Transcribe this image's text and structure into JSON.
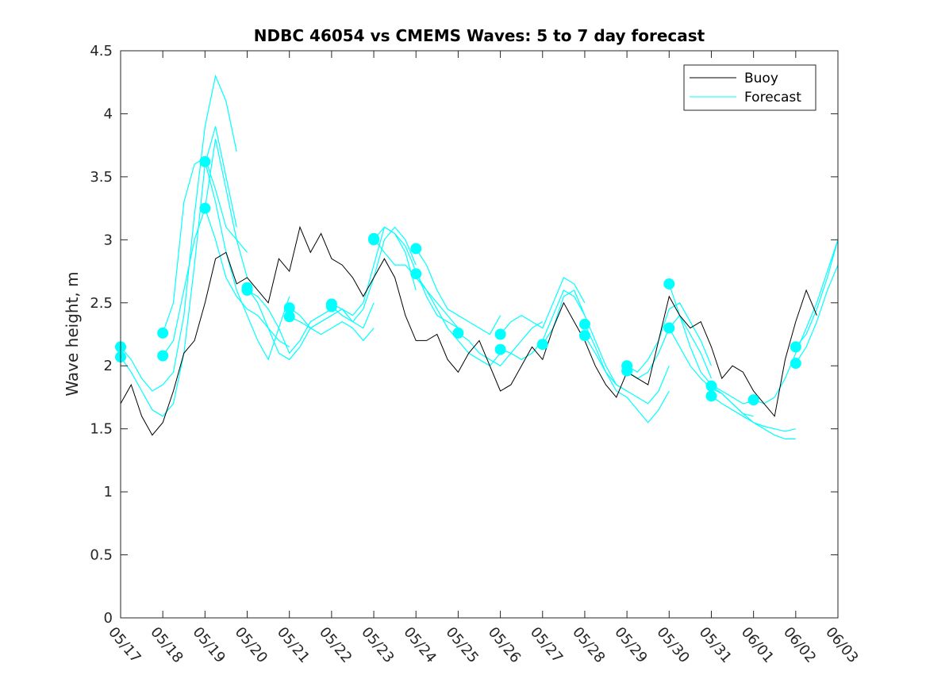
{
  "chart_data": {
    "type": "line",
    "title": "NDBC 46054 vs CMEMS Waves: 5 to 7 day forecast",
    "xlabel": "",
    "ylabel": "Wave height, m",
    "xlim": [
      "05/17",
      "06/03"
    ],
    "ylim": [
      0,
      4.5
    ],
    "x_ticks": [
      "05/17",
      "05/18",
      "05/19",
      "05/20",
      "05/21",
      "05/22",
      "05/23",
      "05/24",
      "05/25",
      "05/26",
      "05/27",
      "05/28",
      "05/29",
      "05/30",
      "05/31",
      "06/01",
      "06/02",
      "06/03"
    ],
    "y_ticks": [
      "0",
      "0.5",
      "1",
      "1.5",
      "2",
      "2.5",
      "3",
      "3.5",
      "4",
      "4.5"
    ],
    "grid": false,
    "legend": {
      "placement": "top-right",
      "entries": [
        "Buoy",
        "Forecast"
      ]
    },
    "colors": {
      "buoy": "#000000",
      "forecast": "#00FFFF"
    },
    "series": [
      {
        "name": "Buoy",
        "x_day_of_may": [
          17.0,
          17.25,
          17.5,
          17.75,
          18.0,
          18.25,
          18.5,
          18.75,
          19.0,
          19.25,
          19.5,
          19.75,
          20.0,
          20.25,
          20.5,
          20.75,
          21.0,
          21.25,
          21.5,
          21.75,
          22.0,
          22.25,
          22.5,
          22.75,
          23.0,
          23.25,
          23.5,
          23.75,
          24.0,
          24.25,
          24.5,
          24.75,
          25.0,
          25.25,
          25.5,
          25.75,
          26.0,
          26.25,
          26.5,
          26.75,
          27.0,
          27.25,
          27.5,
          27.75,
          28.0,
          28.25,
          28.5,
          28.75,
          29.0,
          29.25,
          29.5,
          29.75,
          30.0,
          30.25,
          30.5,
          30.75,
          31.0,
          31.25,
          31.5,
          31.75,
          32.0,
          32.25,
          32.5,
          32.75,
          33.0,
          33.25,
          33.5
        ],
        "values": [
          1.7,
          1.85,
          1.6,
          1.45,
          1.55,
          1.8,
          2.1,
          2.2,
          2.5,
          2.85,
          2.9,
          2.65,
          2.7,
          2.6,
          2.5,
          2.85,
          2.75,
          3.1,
          2.9,
          3.05,
          2.85,
          2.8,
          2.7,
          2.55,
          2.7,
          2.85,
          2.7,
          2.4,
          2.2,
          2.2,
          2.25,
          2.05,
          1.95,
          2.1,
          2.2,
          2.0,
          1.8,
          1.85,
          2.0,
          2.15,
          2.05,
          2.3,
          2.5,
          2.35,
          2.2,
          2.0,
          1.85,
          1.75,
          1.95,
          1.9,
          1.85,
          2.2,
          2.55,
          2.4,
          2.3,
          2.35,
          2.15,
          1.9,
          2.0,
          1.95,
          1.8,
          1.7,
          1.6,
          2.05,
          2.35,
          2.6,
          2.4
        ]
      }
    ],
    "forecast_runs": [
      {
        "x_day_of_may": [
          17.0,
          17.25,
          17.5,
          17.75,
          18.0,
          18.25,
          18.5,
          18.75,
          19.0,
          19.25,
          19.5,
          19.75
        ],
        "values": [
          2.15,
          2.05,
          1.9,
          1.8,
          1.85,
          1.95,
          2.4,
          3.2,
          3.9,
          4.3,
          4.1,
          3.7
        ]
      },
      {
        "x_day_of_may": [
          17.0,
          17.25,
          17.5,
          17.75,
          18.0,
          18.25,
          18.5,
          18.75,
          19.0,
          19.25,
          19.5,
          19.75
        ],
        "values": [
          2.07,
          1.95,
          1.8,
          1.65,
          1.6,
          1.7,
          2.1,
          2.8,
          3.6,
          3.9,
          3.5,
          3.1
        ]
      },
      {
        "x_day_of_may": [
          18.0,
          18.25,
          18.5,
          18.75,
          19.0,
          19.25,
          19.5,
          19.75,
          20.0
        ],
        "values": [
          2.26,
          2.5,
          3.3,
          3.6,
          3.65,
          3.4,
          3.1,
          3.0,
          2.9
        ]
      },
      {
        "x_day_of_may": [
          18.0,
          18.25,
          18.5,
          18.75,
          19.0,
          19.25,
          19.5,
          19.75,
          20.0
        ],
        "values": [
          2.08,
          2.2,
          2.6,
          3.0,
          3.25,
          3.8,
          3.4,
          3.0,
          2.7
        ]
      },
      {
        "x_day_of_may": [
          19.0,
          19.25,
          19.5,
          19.75,
          20.0,
          20.25,
          20.5,
          20.75,
          21.0
        ],
        "values": [
          3.62,
          3.3,
          2.9,
          2.6,
          2.4,
          2.2,
          2.05,
          2.3,
          2.55
        ]
      },
      {
        "x_day_of_may": [
          19.0,
          19.25,
          19.5,
          19.75,
          20.0,
          20.25,
          20.5,
          20.75,
          21.0
        ],
        "values": [
          3.25,
          3.0,
          2.7,
          2.55,
          2.45,
          2.4,
          2.3,
          2.2,
          2.15
        ]
      },
      {
        "x_day_of_may": [
          20.0,
          20.25,
          20.5,
          20.75,
          21.0,
          21.25,
          21.5,
          21.75,
          22.0
        ],
        "values": [
          2.62,
          2.5,
          2.3,
          2.1,
          2.05,
          2.15,
          2.3,
          2.35,
          2.4
        ]
      },
      {
        "x_day_of_may": [
          20.0,
          20.25,
          20.5,
          20.75,
          21.0,
          21.25,
          21.5,
          21.75,
          22.0
        ],
        "values": [
          2.6,
          2.55,
          2.45,
          2.3,
          2.1,
          2.2,
          2.35,
          2.4,
          2.45
        ]
      },
      {
        "x_day_of_may": [
          21.0,
          21.25,
          21.5,
          21.75,
          22.0,
          22.25,
          22.5,
          22.75,
          23.0
        ],
        "values": [
          2.46,
          2.4,
          2.3,
          2.25,
          2.3,
          2.35,
          2.3,
          2.2,
          2.3
        ]
      },
      {
        "x_day_of_may": [
          21.0,
          21.25,
          21.5,
          21.75,
          22.0,
          22.25,
          22.5,
          22.75,
          23.0
        ],
        "values": [
          2.39,
          2.35,
          2.3,
          2.35,
          2.4,
          2.45,
          2.35,
          2.3,
          2.5
        ]
      },
      {
        "x_day_of_may": [
          22.0,
          22.25,
          22.5,
          22.75,
          23.0,
          23.25,
          23.5,
          23.75,
          24.0
        ],
        "values": [
          2.49,
          2.45,
          2.4,
          2.5,
          2.8,
          3.1,
          3.05,
          2.9,
          2.6
        ]
      },
      {
        "x_day_of_may": [
          22.0,
          22.25,
          22.5,
          22.75,
          23.0,
          23.25,
          23.5,
          23.75,
          24.0
        ],
        "values": [
          2.47,
          2.4,
          2.35,
          2.45,
          2.7,
          3.0,
          3.1,
          3.0,
          2.8
        ]
      },
      {
        "x_day_of_may": [
          23.0,
          23.25,
          23.5,
          23.75,
          24.0,
          24.25,
          24.5,
          24.75,
          25.0
        ],
        "values": [
          3.01,
          2.9,
          2.8,
          2.8,
          2.7,
          2.6,
          2.5,
          2.4,
          2.3
        ]
      },
      {
        "x_day_of_may": [
          23.0,
          23.25,
          23.5,
          23.75,
          24.0,
          24.25,
          24.5,
          24.75,
          25.0
        ],
        "values": [
          3.0,
          3.1,
          3.05,
          2.95,
          2.75,
          2.55,
          2.4,
          2.35,
          2.3
        ]
      },
      {
        "x_day_of_may": [
          24.0,
          24.25,
          24.5,
          24.75,
          25.0,
          25.25,
          25.5,
          25.75,
          26.0
        ],
        "values": [
          2.93,
          2.8,
          2.6,
          2.45,
          2.4,
          2.35,
          2.3,
          2.25,
          2.4
        ]
      },
      {
        "x_day_of_may": [
          24.0,
          24.25,
          24.5,
          24.75,
          25.0,
          25.25,
          25.5,
          25.75,
          26.0
        ],
        "values": [
          2.73,
          2.6,
          2.45,
          2.3,
          2.2,
          2.1,
          2.05,
          2.0,
          2.1
        ]
      },
      {
        "x_day_of_may": [
          25.0,
          25.25,
          25.5,
          25.75,
          26.0,
          26.25,
          26.5,
          26.75,
          27.0
        ],
        "values": [
          2.26,
          2.2,
          2.1,
          2.05,
          2.0,
          2.1,
          2.2,
          2.3,
          2.35
        ]
      },
      {
        "x_day_of_may": [
          26.0,
          26.25,
          26.5,
          26.75,
          27.0,
          27.25,
          27.5,
          27.75,
          28.0
        ],
        "values": [
          2.25,
          2.35,
          2.4,
          2.35,
          2.3,
          2.5,
          2.7,
          2.65,
          2.5
        ]
      },
      {
        "x_day_of_may": [
          26.0,
          26.25,
          26.5,
          26.75,
          27.0,
          27.25,
          27.5,
          27.75,
          28.0
        ],
        "values": [
          2.13,
          2.1,
          2.05,
          2.1,
          2.2,
          2.4,
          2.6,
          2.55,
          2.4
        ]
      },
      {
        "x_day_of_may": [
          27.0,
          27.25,
          27.5,
          27.75,
          28.0,
          28.25,
          28.5,
          28.75,
          29.0
        ],
        "values": [
          2.17,
          2.3,
          2.55,
          2.6,
          2.4,
          2.2,
          2.0,
          1.85,
          1.8
        ]
      },
      {
        "x_day_of_may": [
          28.0,
          28.25,
          28.5,
          28.75,
          29.0,
          29.25,
          29.5,
          29.75,
          30.0
        ],
        "values": [
          2.33,
          2.15,
          1.95,
          1.8,
          1.75,
          1.65,
          1.55,
          1.65,
          1.8
        ]
      },
      {
        "x_day_of_may": [
          28.0,
          28.25,
          28.5,
          28.75,
          29.0,
          29.25,
          29.5,
          29.75,
          30.0
        ],
        "values": [
          2.24,
          2.1,
          1.95,
          1.85,
          1.8,
          1.75,
          1.7,
          1.8,
          2.0
        ]
      },
      {
        "x_day_of_may": [
          29.0,
          29.25,
          29.5,
          29.75,
          30.0,
          30.25,
          30.5,
          30.75,
          31.0
        ],
        "values": [
          2.0,
          1.95,
          2.05,
          2.2,
          2.45,
          2.5,
          2.35,
          2.2,
          2.0
        ]
      },
      {
        "x_day_of_may": [
          29.0,
          29.25,
          29.5,
          29.75,
          30.0,
          30.25,
          30.5,
          30.75,
          31.0
        ],
        "values": [
          1.96,
          1.9,
          1.95,
          2.1,
          2.3,
          2.4,
          2.25,
          2.1,
          1.9
        ]
      },
      {
        "x_day_of_may": [
          30.0,
          30.25,
          30.5,
          30.75,
          31.0,
          31.25,
          31.5,
          31.75,
          32.0
        ],
        "values": [
          2.65,
          2.4,
          2.15,
          1.95,
          1.85,
          1.8,
          1.75,
          1.7,
          1.72
        ]
      },
      {
        "x_day_of_may": [
          30.0,
          30.25,
          30.5,
          30.75,
          31.0,
          31.25,
          31.5,
          31.75,
          32.0
        ],
        "values": [
          2.3,
          2.15,
          2.0,
          1.9,
          1.82,
          1.78,
          1.7,
          1.62,
          1.6
        ]
      },
      {
        "x_day_of_may": [
          31.0,
          31.25,
          31.5,
          31.75,
          32.0,
          32.25,
          32.5,
          32.75,
          33.0
        ],
        "values": [
          1.84,
          1.78,
          1.7,
          1.62,
          1.55,
          1.5,
          1.45,
          1.42,
          1.42
        ]
      },
      {
        "x_day_of_may": [
          31.0,
          31.25,
          31.5,
          31.75,
          32.0,
          32.25,
          32.5,
          32.75,
          33.0
        ],
        "values": [
          1.76,
          1.7,
          1.65,
          1.6,
          1.55,
          1.52,
          1.5,
          1.48,
          1.5
        ]
      },
      {
        "x_day_of_may": [
          32.0,
          32.25,
          32.5,
          32.75,
          33.0,
          33.25,
          33.5,
          33.75,
          34.0
        ],
        "values": [
          1.73,
          1.7,
          1.75,
          1.9,
          2.1,
          2.3,
          2.5,
          2.75,
          3.0
        ]
      },
      {
        "x_day_of_may": [
          33.0,
          33.25,
          33.5,
          33.75,
          34.0
        ],
        "values": [
          2.15,
          2.25,
          2.45,
          2.7,
          3.0
        ]
      },
      {
        "x_day_of_may": [
          33.0,
          33.25,
          33.5,
          33.75,
          34.0
        ],
        "values": [
          2.02,
          2.15,
          2.35,
          2.6,
          2.8
        ]
      }
    ]
  }
}
